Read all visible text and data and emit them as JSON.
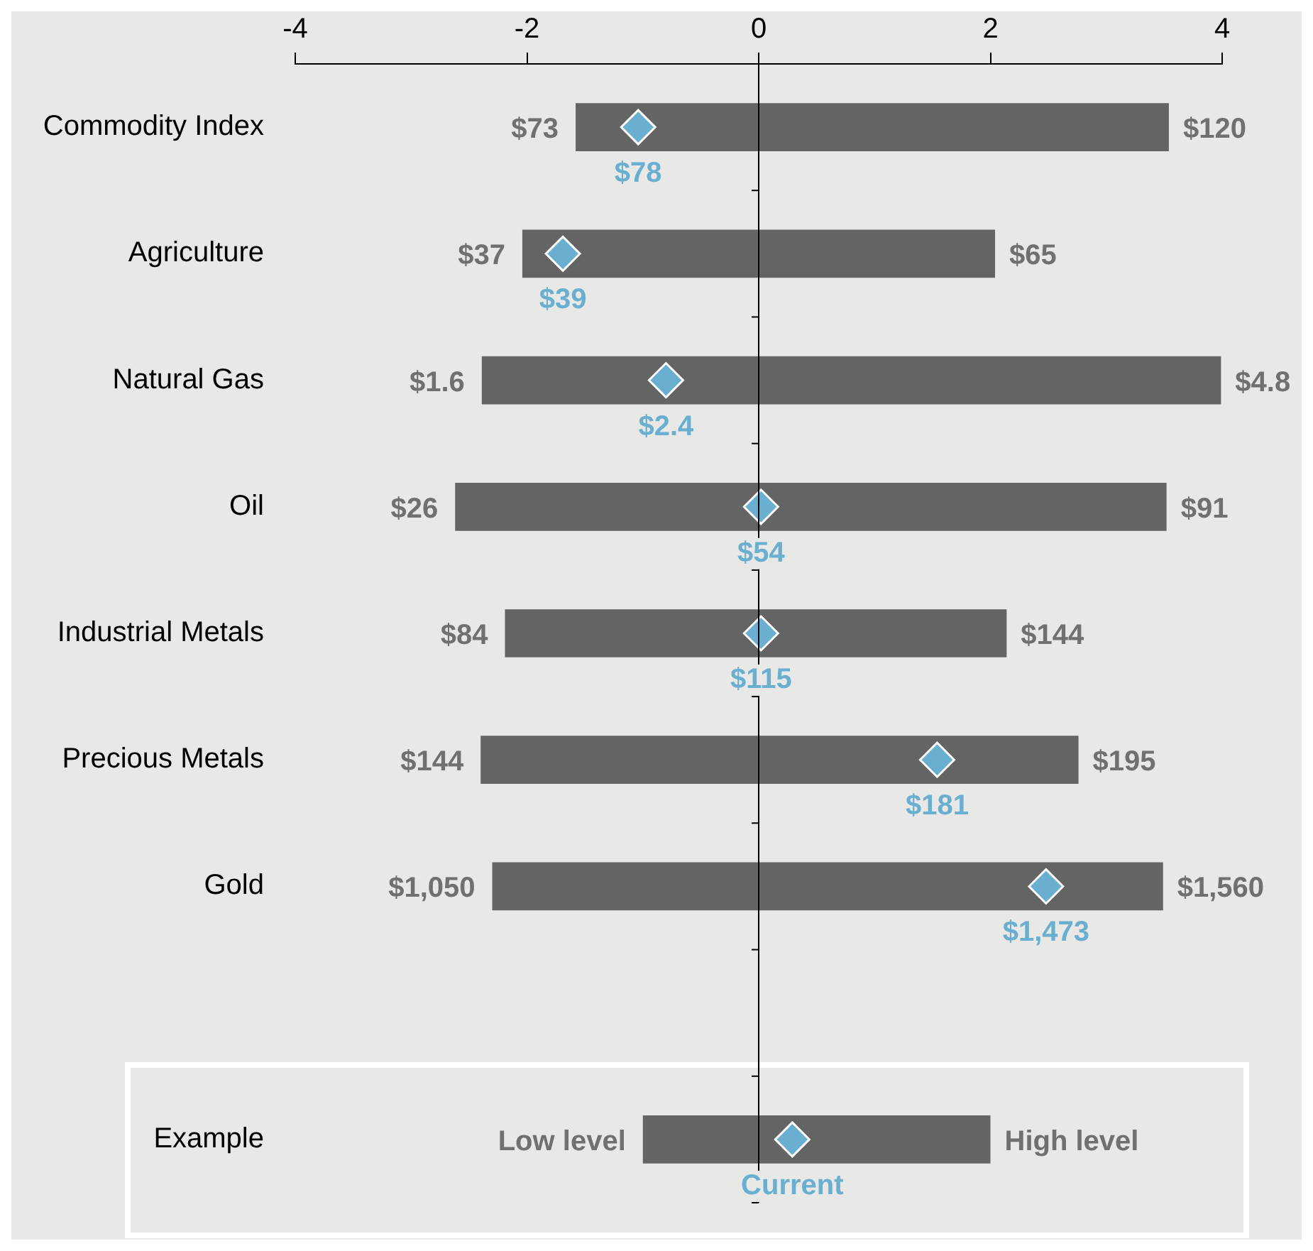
{
  "chart_data": {
    "type": "bar",
    "orientation": "horizontal",
    "categories": [
      "Commodity Index",
      "Agriculture",
      "Natural Gas",
      "Oil",
      "Industrial Metals",
      "Precious Metals",
      "Gold",
      null,
      "Example"
    ],
    "xlim": [
      -4,
      4
    ],
    "xticks": [
      -4,
      -2,
      0,
      2,
      4
    ],
    "grid": false,
    "legend": false,
    "series": [
      {
        "color": "#646464",
        "base": [
          -1.58,
          -2.04,
          -2.39,
          -2.62,
          -2.19,
          -2.4,
          -2.3,
          null,
          -1.0
        ],
        "values": [
          5.12,
          4.08,
          6.38,
          6.14,
          4.33,
          5.16,
          5.79,
          null,
          3.0
        ]
      },
      {
        "type": "scatter",
        "marker": "diamond",
        "color": "#6aaed0",
        "x": [
          "Commodity Index",
          "Agriculture",
          "Natural Gas",
          "Oil",
          "Industrial Metals",
          "Precious Metals",
          "Gold",
          "Example"
        ],
        "values": [
          -1.04,
          -1.69,
          -0.8,
          0.02,
          0.02,
          1.54,
          2.48,
          0.29
        ]
      }
    ],
    "ref_lines": [
      {
        "axis": "x",
        "value": 0,
        "color": "#000000"
      }
    ],
    "annotations": [
      {
        "text": "$73",
        "x": -1.58,
        "y": "Commodity Index"
      },
      {
        "text": "$120",
        "x": 3.54,
        "y": "Commodity Index"
      },
      {
        "text": "$78",
        "x": -1.04,
        "y": "Commodity Index"
      },
      {
        "text": "$37",
        "x": -2.04,
        "y": "Agriculture"
      },
      {
        "text": "$65",
        "x": 2.04,
        "y": "Agriculture"
      },
      {
        "text": "$39",
        "x": -1.69,
        "y": "Agriculture"
      },
      {
        "text": "$1.6",
        "x": -2.39,
        "y": "Natural Gas"
      },
      {
        "text": "$4.8",
        "x": 3.99,
        "y": "Natural Gas"
      },
      {
        "text": "$2.4",
        "x": -0.8,
        "y": "Natural Gas"
      },
      {
        "text": "$26",
        "x": -2.62,
        "y": "Oil"
      },
      {
        "text": "$91",
        "x": 3.52,
        "y": "Oil"
      },
      {
        "text": "$54",
        "x": 0.02,
        "y": "Oil"
      },
      {
        "text": "$84",
        "x": -2.19,
        "y": "Industrial Metals"
      },
      {
        "text": "$144",
        "x": 2.14,
        "y": "Industrial Metals"
      },
      {
        "text": "$115",
        "x": 0.02,
        "y": "Industrial Metals"
      },
      {
        "text": "$144",
        "x": -2.4,
        "y": "Precious Metals"
      },
      {
        "text": "$195",
        "x": 2.76,
        "y": "Precious Metals"
      },
      {
        "text": "$181",
        "x": 1.54,
        "y": "Precious Metals"
      },
      {
        "text": "$1,050",
        "x": -2.3,
        "y": "Gold"
      },
      {
        "text": "$1,560",
        "x": 3.49,
        "y": "Gold"
      },
      {
        "text": "$1,473",
        "x": 2.48,
        "y": "Gold"
      },
      {
        "text": "Low level",
        "x": -1.0,
        "y": "Example"
      },
      {
        "text": "High level",
        "x": 2.0,
        "y": "Example"
      },
      {
        "text": "Current",
        "x": 0.29,
        "y": "Example"
      }
    ]
  }
}
